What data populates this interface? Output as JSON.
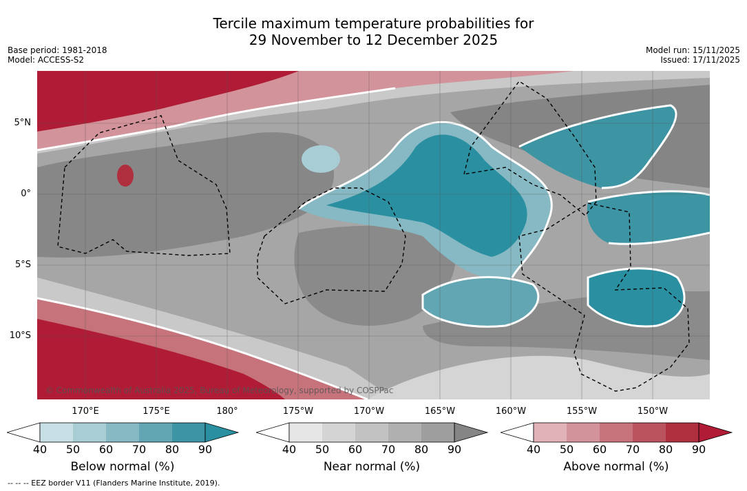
{
  "title_line1": "Tercile maximum temperature probabilities for",
  "title_line2": "29 November to 12 December 2025",
  "base_period": "Base period: 1981-2018",
  "model": "Model: ACCESS-S2",
  "model_run": "Model run: 15/11/2025",
  "issued": "Issued: 17/11/2025",
  "latitudes": [
    "5°N",
    "0°",
    "5°S",
    "10°S"
  ],
  "longitudes": [
    "170°E",
    "175°E",
    "180°",
    "175°W",
    "170°W",
    "165°W",
    "160°W",
    "155°W",
    "150°W"
  ],
  "copyright": "© Commonwealth of Australia 2025, Bureau of Meteorology, supported by COSPPac",
  "colorbars": {
    "below": {
      "label": "Below normal (%)",
      "ticks": [
        "40",
        "50",
        "60",
        "70",
        "80",
        "90"
      ],
      "colors": [
        "#ffffff",
        "#c7e0e6",
        "#a8cdd4",
        "#86b9c3",
        "#62a6b3",
        "#3d94a3",
        "#2a8fa0"
      ]
    },
    "near": {
      "label": "Near normal (%)",
      "ticks": [
        "40",
        "50",
        "60",
        "70",
        "80",
        "90"
      ],
      "colors": [
        "#ffffff",
        "#e6e6e6",
        "#d4d4d4",
        "#c2c2c2",
        "#b0b0b0",
        "#9e9e9e",
        "#858585"
      ]
    },
    "above": {
      "label": "Above normal (%)",
      "ticks": [
        "40",
        "50",
        "60",
        "70",
        "80",
        "90"
      ],
      "colors": [
        "#ffffff",
        "#e0b3b8",
        "#d3939a",
        "#c7737c",
        "#bb535f",
        "#b02f3f",
        "#b01c35"
      ]
    }
  },
  "eez_note": "--  --  -- EEZ border V11 (Flanders Marine Institute, 2019)."
}
